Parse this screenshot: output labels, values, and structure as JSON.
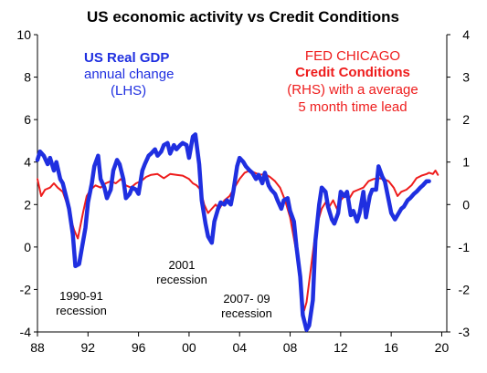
{
  "chart_data": {
    "type": "line",
    "title": "US economic activity  vs Credit Conditions",
    "x_tick_labels": [
      "88",
      "92",
      "96",
      "00",
      "04",
      "08",
      "12",
      "16",
      "20"
    ],
    "x_range": [
      1988,
      2020.4
    ],
    "left_axis": {
      "range": [
        -4,
        10
      ],
      "ticks": [
        "-4",
        "-2",
        "0",
        "2",
        "4",
        "6",
        "8",
        "10"
      ]
    },
    "right_axis": {
      "range": [
        -3,
        4
      ],
      "ticks": [
        "-3",
        "-2",
        "-1",
        "0",
        "1",
        "2",
        "3",
        "4"
      ]
    },
    "grid": false,
    "series": [
      {
        "name": "US Real GDP annual change (LHS)",
        "axis": "left",
        "color": "#1f2fe0",
        "points": [
          [
            1988.0,
            4.1
          ],
          [
            1988.2,
            4.5
          ],
          [
            1988.5,
            4.3
          ],
          [
            1988.8,
            3.9
          ],
          [
            1989.0,
            4.2
          ],
          [
            1989.3,
            3.6
          ],
          [
            1989.5,
            4.0
          ],
          [
            1989.8,
            3.2
          ],
          [
            1990.0,
            3.0
          ],
          [
            1990.3,
            2.3
          ],
          [
            1990.5,
            1.8
          ],
          [
            1990.8,
            0.6
          ],
          [
            1991.0,
            -0.9
          ],
          [
            1991.3,
            -0.8
          ],
          [
            1991.5,
            -0.1
          ],
          [
            1991.8,
            0.9
          ],
          [
            1992.0,
            2.1
          ],
          [
            1992.3,
            3.0
          ],
          [
            1992.5,
            3.8
          ],
          [
            1992.8,
            4.3
          ],
          [
            1993.0,
            3.2
          ],
          [
            1993.3,
            2.8
          ],
          [
            1993.5,
            2.3
          ],
          [
            1993.8,
            2.7
          ],
          [
            1994.0,
            3.6
          ],
          [
            1994.3,
            4.1
          ],
          [
            1994.5,
            3.9
          ],
          [
            1994.8,
            3.2
          ],
          [
            1995.0,
            2.3
          ],
          [
            1995.3,
            2.5
          ],
          [
            1995.5,
            2.8
          ],
          [
            1995.8,
            2.7
          ],
          [
            1996.0,
            2.5
          ],
          [
            1996.3,
            3.6
          ],
          [
            1996.5,
            3.9
          ],
          [
            1996.8,
            4.3
          ],
          [
            1997.0,
            4.4
          ],
          [
            1997.3,
            4.6
          ],
          [
            1997.5,
            4.3
          ],
          [
            1997.8,
            4.5
          ],
          [
            1998.0,
            4.8
          ],
          [
            1998.3,
            4.9
          ],
          [
            1998.5,
            4.4
          ],
          [
            1998.8,
            4.8
          ],
          [
            1999.0,
            4.6
          ],
          [
            1999.3,
            4.8
          ],
          [
            1999.5,
            4.9
          ],
          [
            1999.8,
            4.8
          ],
          [
            2000.0,
            4.2
          ],
          [
            2000.3,
            5.2
          ],
          [
            2000.5,
            5.3
          ],
          [
            2000.8,
            3.9
          ],
          [
            2001.0,
            2.2
          ],
          [
            2001.3,
            1.1
          ],
          [
            2001.5,
            0.5
          ],
          [
            2001.8,
            0.2
          ],
          [
            2002.0,
            1.2
          ],
          [
            2002.3,
            1.8
          ],
          [
            2002.5,
            2.1
          ],
          [
            2002.8,
            2.0
          ],
          [
            2003.0,
            2.2
          ],
          [
            2003.3,
            2.0
          ],
          [
            2003.5,
            2.6
          ],
          [
            2003.8,
            3.8
          ],
          [
            2004.0,
            4.2
          ],
          [
            2004.3,
            4.0
          ],
          [
            2004.5,
            3.8
          ],
          [
            2004.8,
            3.6
          ],
          [
            2005.0,
            3.5
          ],
          [
            2005.3,
            3.2
          ],
          [
            2005.5,
            3.4
          ],
          [
            2005.8,
            3.0
          ],
          [
            2006.0,
            3.5
          ],
          [
            2006.3,
            2.9
          ],
          [
            2006.5,
            2.7
          ],
          [
            2006.8,
            2.5
          ],
          [
            2007.0,
            2.2
          ],
          [
            2007.3,
            1.8
          ],
          [
            2007.5,
            2.2
          ],
          [
            2007.8,
            2.3
          ],
          [
            2008.0,
            1.7
          ],
          [
            2008.3,
            1.2
          ],
          [
            2008.5,
            0.0
          ],
          [
            2008.8,
            -1.4
          ],
          [
            2009.0,
            -3.2
          ],
          [
            2009.3,
            -3.9
          ],
          [
            2009.5,
            -3.7
          ],
          [
            2009.8,
            -2.5
          ],
          [
            2010.0,
            0.3
          ],
          [
            2010.3,
            2.0
          ],
          [
            2010.5,
            2.8
          ],
          [
            2010.8,
            2.6
          ],
          [
            2011.0,
            1.9
          ],
          [
            2011.3,
            1.3
          ],
          [
            2011.5,
            1.1
          ],
          [
            2011.8,
            1.6
          ],
          [
            2012.0,
            2.6
          ],
          [
            2012.3,
            2.4
          ],
          [
            2012.5,
            2.6
          ],
          [
            2012.8,
            1.5
          ],
          [
            2013.0,
            1.7
          ],
          [
            2013.3,
            1.2
          ],
          [
            2013.5,
            1.6
          ],
          [
            2013.8,
            2.6
          ],
          [
            2014.0,
            1.4
          ],
          [
            2014.3,
            2.4
          ],
          [
            2014.5,
            2.7
          ],
          [
            2014.8,
            2.7
          ],
          [
            2015.0,
            3.8
          ],
          [
            2015.3,
            3.3
          ],
          [
            2015.5,
            3.1
          ],
          [
            2015.8,
            2.2
          ],
          [
            2016.0,
            1.6
          ],
          [
            2016.3,
            1.3
          ],
          [
            2016.5,
            1.5
          ],
          [
            2016.8,
            1.8
          ],
          [
            2017.0,
            1.9
          ],
          [
            2017.3,
            2.2
          ],
          [
            2017.5,
            2.3
          ],
          [
            2017.8,
            2.5
          ],
          [
            2018.0,
            2.6
          ],
          [
            2018.3,
            2.8
          ],
          [
            2018.5,
            2.9
          ],
          [
            2018.8,
            3.1
          ],
          [
            2019.0,
            3.1
          ]
        ]
      },
      {
        "name": "FED CHICAGO Credit Conditions (RHS) with a average 5 month time lead",
        "axis": "right",
        "color": "#ee1c1c",
        "points": [
          [
            1988.0,
            0.6
          ],
          [
            1988.3,
            0.2
          ],
          [
            1988.6,
            0.35
          ],
          [
            1989.0,
            0.4
          ],
          [
            1989.3,
            0.5
          ],
          [
            1989.6,
            0.4
          ],
          [
            1990.0,
            0.3
          ],
          [
            1990.3,
            0.05
          ],
          [
            1990.6,
            -0.3
          ],
          [
            1990.9,
            -0.6
          ],
          [
            1991.2,
            -0.8
          ],
          [
            1991.4,
            -0.5
          ],
          [
            1991.6,
            -0.2
          ],
          [
            1991.9,
            0.2
          ],
          [
            1992.2,
            0.35
          ],
          [
            1992.6,
            0.45
          ],
          [
            1993.0,
            0.4
          ],
          [
            1993.4,
            0.5
          ],
          [
            1993.8,
            0.55
          ],
          [
            1994.2,
            0.5
          ],
          [
            1994.6,
            0.6
          ],
          [
            1995.0,
            0.45
          ],
          [
            1995.4,
            0.4
          ],
          [
            1995.8,
            0.5
          ],
          [
            1996.2,
            0.55
          ],
          [
            1996.6,
            0.65
          ],
          [
            1997.0,
            0.7
          ],
          [
            1997.5,
            0.72
          ],
          [
            1998.0,
            0.62
          ],
          [
            1998.5,
            0.72
          ],
          [
            1999.0,
            0.7
          ],
          [
            1999.5,
            0.68
          ],
          [
            2000.0,
            0.6
          ],
          [
            2000.3,
            0.5
          ],
          [
            2000.6,
            0.45
          ],
          [
            2000.9,
            0.35
          ],
          [
            2001.2,
            0.0
          ],
          [
            2001.5,
            -0.2
          ],
          [
            2001.8,
            -0.1
          ],
          [
            2002.1,
            0.0
          ],
          [
            2002.4,
            -0.1
          ],
          [
            2002.8,
            0.1
          ],
          [
            2003.2,
            0.2
          ],
          [
            2003.6,
            0.4
          ],
          [
            2004.0,
            0.6
          ],
          [
            2004.4,
            0.75
          ],
          [
            2004.8,
            0.8
          ],
          [
            2005.2,
            0.75
          ],
          [
            2005.6,
            0.7
          ],
          [
            2006.0,
            0.72
          ],
          [
            2006.4,
            0.65
          ],
          [
            2006.8,
            0.55
          ],
          [
            2007.2,
            0.4
          ],
          [
            2007.6,
            0.1
          ],
          [
            2008.0,
            -0.3
          ],
          [
            2008.3,
            -0.8
          ],
          [
            2008.6,
            -1.3
          ],
          [
            2008.9,
            -2.1
          ],
          [
            2009.1,
            -2.5
          ],
          [
            2009.3,
            -2.3
          ],
          [
            2009.6,
            -1.6
          ],
          [
            2009.9,
            -0.9
          ],
          [
            2010.2,
            -0.4
          ],
          [
            2010.5,
            -0.1
          ],
          [
            2010.8,
            0.05
          ],
          [
            2011.1,
            -0.05
          ],
          [
            2011.4,
            0.1
          ],
          [
            2011.7,
            -0.1
          ],
          [
            2012.0,
            0.1
          ],
          [
            2012.3,
            0.2
          ],
          [
            2012.7,
            0.15
          ],
          [
            2013.0,
            0.3
          ],
          [
            2013.4,
            0.35
          ],
          [
            2013.8,
            0.4
          ],
          [
            2014.2,
            0.55
          ],
          [
            2014.6,
            0.6
          ],
          [
            2015.0,
            0.62
          ],
          [
            2015.4,
            0.6
          ],
          [
            2015.8,
            0.55
          ],
          [
            2016.2,
            0.4
          ],
          [
            2016.5,
            0.2
          ],
          [
            2016.8,
            0.3
          ],
          [
            2017.2,
            0.35
          ],
          [
            2017.6,
            0.45
          ],
          [
            2018.0,
            0.62
          ],
          [
            2018.4,
            0.68
          ],
          [
            2018.8,
            0.72
          ],
          [
            2019.0,
            0.75
          ],
          [
            2019.3,
            0.72
          ],
          [
            2019.5,
            0.8
          ],
          [
            2019.7,
            0.7
          ]
        ]
      }
    ],
    "legend": {
      "gdp": {
        "line1": "US Real GDP",
        "line2": "annual change",
        "line3": "(LHS)"
      },
      "credit": {
        "line1": "FED CHICAGO",
        "line2": "Credit Conditions",
        "line3": "(RHS) with a average",
        "line4": "5 month time lead"
      }
    },
    "annotations": [
      {
        "id": "r1990",
        "lines": [
          "1990-91",
          "recession"
        ]
      },
      {
        "id": "r2001",
        "lines": [
          "2001",
          "recession"
        ]
      },
      {
        "id": "r2007",
        "lines": [
          "2007- 09",
          "recession"
        ]
      }
    ]
  }
}
